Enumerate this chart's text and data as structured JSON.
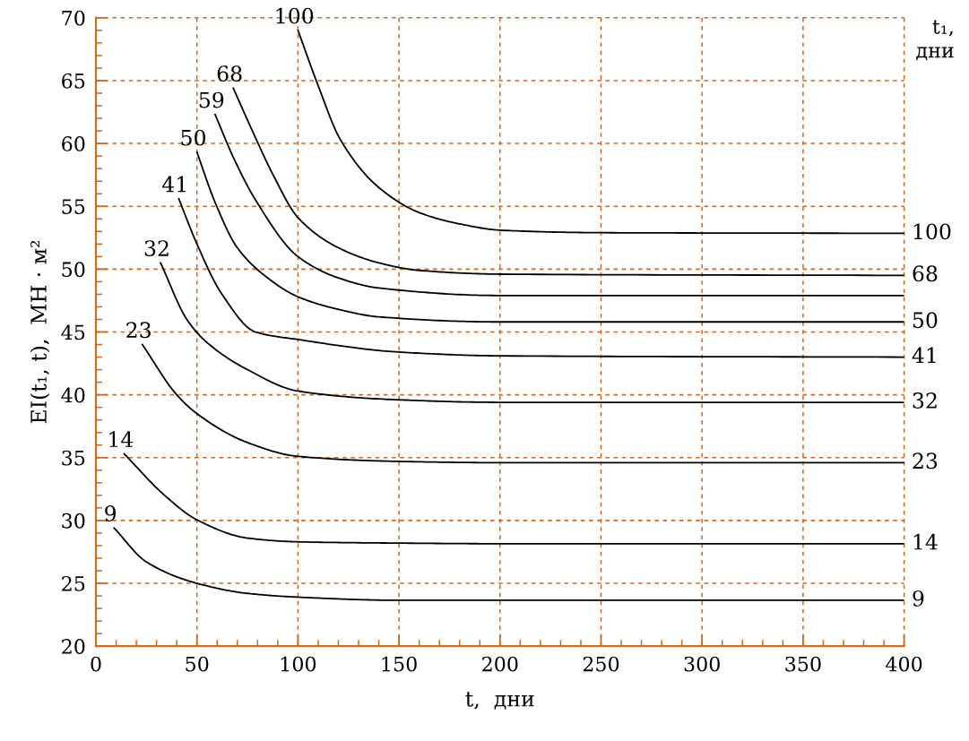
{
  "chart_data": {
    "type": "line",
    "xlabel": "t,  дни",
    "ylabel": "EI(t₁, t),  МН · м²",
    "xlim": [
      0,
      400
    ],
    "xticks": [
      0,
      50,
      100,
      150,
      200,
      250,
      300,
      350,
      400
    ],
    "ylim": [
      20,
      70
    ],
    "yticks": [
      20,
      25,
      30,
      35,
      40,
      45,
      50,
      55,
      60,
      65,
      70
    ],
    "grid": true,
    "marker": "none",
    "line_style": "solid",
    "series": [
      {
        "color": "#000000",
        "x": [
          9,
          25,
          50,
          75,
          100,
          150,
          200,
          400
        ],
        "values": [
          29.4,
          26.7,
          25.0,
          24.2,
          23.9,
          23.65,
          23.65,
          23.65
        ]
      },
      {
        "color": "#000000",
        "x": [
          14,
          34,
          50,
          75,
          100,
          150,
          200,
          400
        ],
        "values": [
          35.3,
          32.0,
          30.05,
          28.6,
          28.3,
          28.2,
          28.15,
          28.15
        ]
      },
      {
        "color": "#000000",
        "x": [
          23,
          40,
          50,
          75,
          100,
          150,
          200,
          400
        ],
        "values": [
          44.0,
          40.0,
          38.5,
          36.2,
          35.1,
          34.7,
          34.6,
          34.6
        ]
      },
      {
        "color": "#000000",
        "x": [
          32,
          45,
          54,
          75,
          100,
          150,
          200,
          400
        ],
        "values": [
          50.5,
          46.0,
          44.3,
          42.0,
          40.3,
          39.6,
          39.4,
          39.4
        ]
      },
      {
        "color": "#000000",
        "x": [
          41,
          50,
          62,
          79,
          100,
          150,
          200,
          400
        ],
        "values": [
          55.6,
          52.0,
          48.1,
          45.0,
          44.4,
          43.4,
          43.1,
          43.0
        ]
      },
      {
        "color": "#000000",
        "x": [
          50,
          59,
          70,
          85,
          100,
          120,
          140,
          200,
          400
        ],
        "values": [
          59.3,
          55.3,
          51.7,
          49.3,
          47.8,
          46.8,
          46.2,
          45.8,
          45.8
        ]
      },
      {
        "color": "#000000",
        "x": [
          59,
          68,
          79,
          100,
          120,
          140,
          200,
          400
        ],
        "values": [
          62.3,
          58.9,
          55.5,
          51.0,
          49.3,
          48.5,
          47.9,
          47.9
        ]
      },
      {
        "color": "#000000",
        "x": [
          68,
          78,
          88,
          100,
          120,
          140,
          160,
          200,
          400
        ],
        "values": [
          64.4,
          60.8,
          57.4,
          54.1,
          51.7,
          50.5,
          49.9,
          49.6,
          49.5
        ]
      },
      {
        "color": "#000000",
        "x": [
          100,
          110,
          121,
          140,
          160,
          180,
          200,
          250,
          400
        ],
        "values": [
          69.0,
          64.6,
          60.3,
          56.5,
          54.5,
          53.6,
          53.1,
          52.9,
          52.85
        ]
      }
    ],
    "annotations": [
      {
        "text": "9",
        "x": 9,
        "y": 29.4
      },
      {
        "text": "14",
        "x": 14,
        "y": 35.3
      },
      {
        "text": "23",
        "x": 23,
        "y": 44.0
      },
      {
        "text": "32",
        "x": 32,
        "y": 50.5
      },
      {
        "text": "41",
        "x": 41,
        "y": 55.6
      },
      {
        "text": "50",
        "x": 50,
        "y": 59.3
      },
      {
        "text": "59",
        "x": 59,
        "y": 62.3
      },
      {
        "text": "68",
        "x": 68,
        "y": 64.4
      },
      {
        "text": "100",
        "x": 100,
        "y": 69.0
      },
      {
        "text": "100",
        "x": 400,
        "y": 52.85
      },
      {
        "text": "68",
        "x": 400,
        "y": 49.5
      },
      {
        "text": "50",
        "x": 400,
        "y": 45.8
      },
      {
        "text": "41",
        "x": 400,
        "y": 43.0
      },
      {
        "text": "32",
        "x": 400,
        "y": 39.4
      },
      {
        "text": "23",
        "x": 400,
        "y": 34.6
      },
      {
        "text": "14",
        "x": 400,
        "y": 28.15
      },
      {
        "text": "9",
        "x": 400,
        "y": 23.65
      },
      "t₁,\nдни"
    ]
  }
}
